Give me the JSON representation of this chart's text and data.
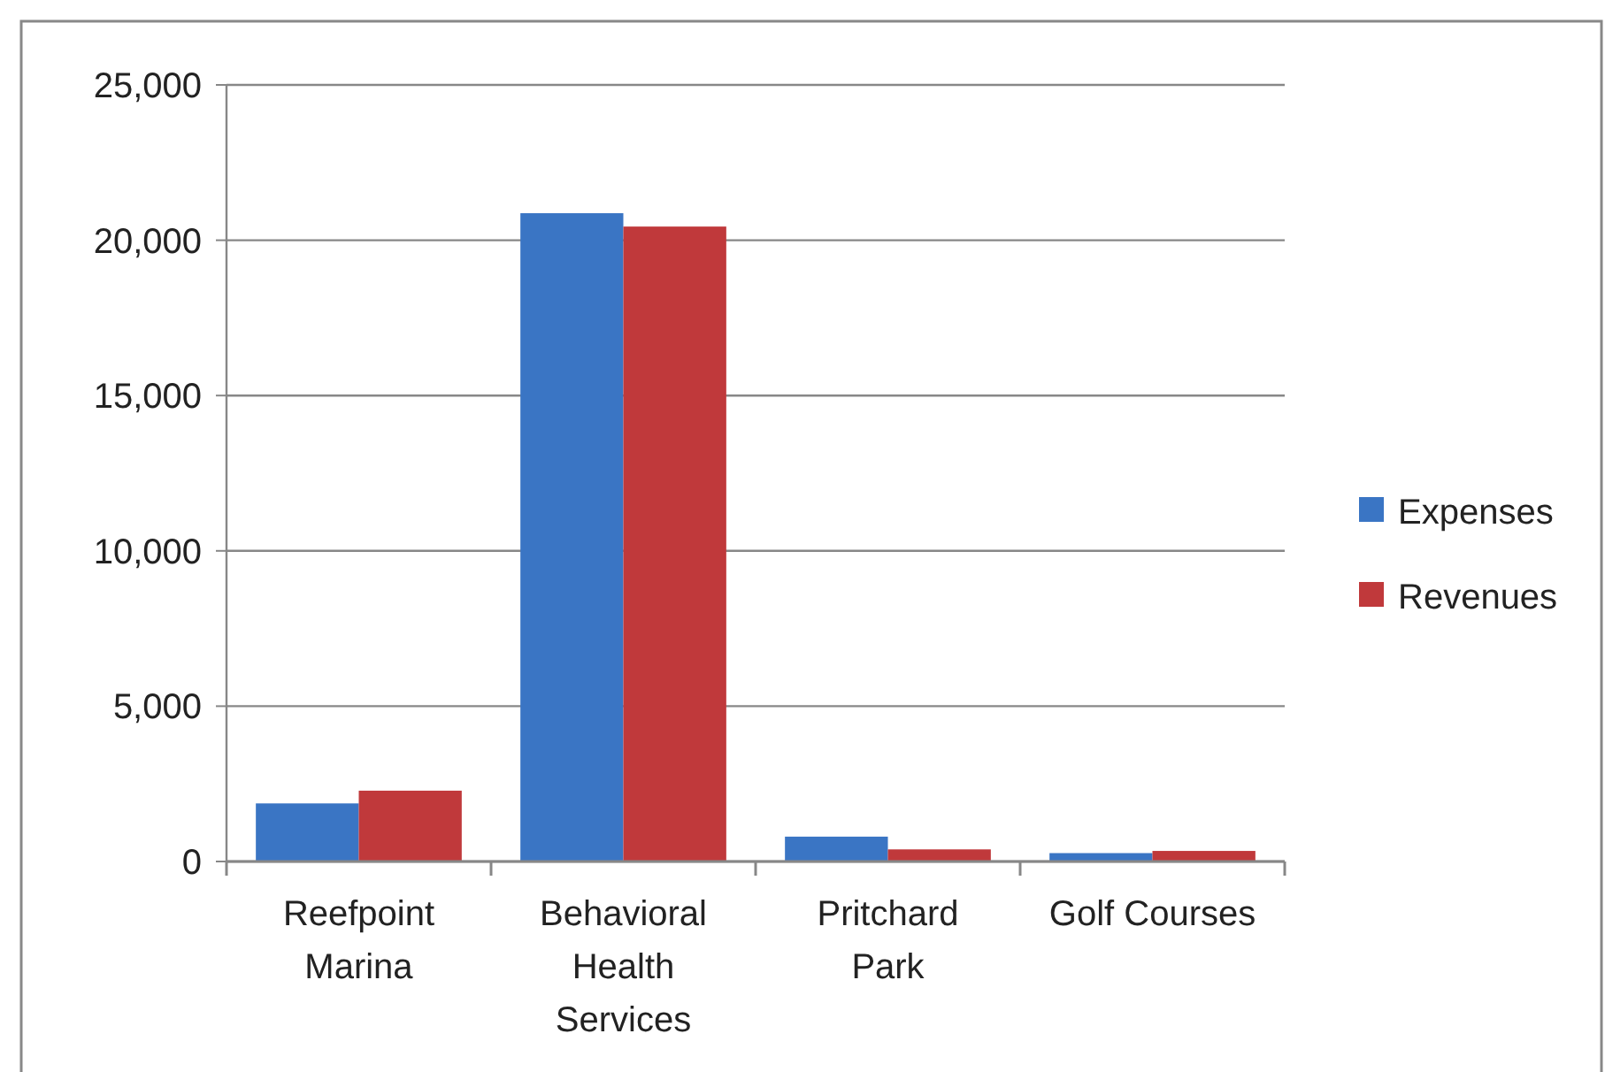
{
  "chart_data": {
    "type": "bar",
    "categories": [
      "Reefpoint Marina",
      "Behavioral Health Services",
      "Pritchard Park",
      "Golf Courses"
    ],
    "series": [
      {
        "name": "Expenses",
        "color": "#3a75c4",
        "values": [
          1870,
          20870,
          800,
          270
        ]
      },
      {
        "name": "Revenues",
        "color": "#c0393b",
        "values": [
          2280,
          20440,
          390,
          340
        ]
      }
    ],
    "ylim": [
      0,
      25000
    ],
    "yticks": [
      {
        "value": 0,
        "label": "0"
      },
      {
        "value": 5000,
        "label": "5,000"
      },
      {
        "value": 10000,
        "label": "10,000"
      },
      {
        "value": 15000,
        "label": "15,000"
      },
      {
        "value": 20000,
        "label": "20,000"
      },
      {
        "value": 25000,
        "label": "25,000"
      }
    ],
    "grid": "y",
    "legend": "right"
  }
}
